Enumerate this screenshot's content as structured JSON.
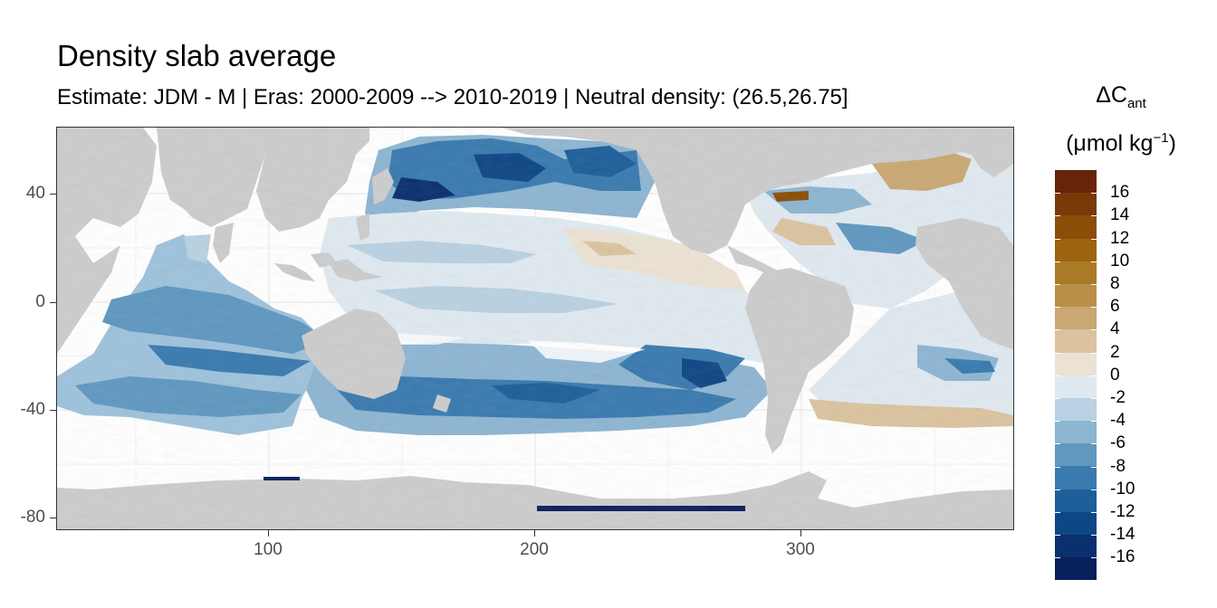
{
  "title": "Density slab average",
  "subtitle": "Estimate: JDM - M | Eras: 2000-2009 --> 2010-2019 | Neutral density: (26.5,26.75]",
  "legend": {
    "title_symbol": "ΔC",
    "title_subscript": "ant",
    "title_unit_prefix": "(μmol kg",
    "title_unit_superscript": "−1",
    "title_unit_suffix": ")",
    "labels": [
      "16",
      "14",
      "12",
      "10",
      "8",
      "6",
      "4",
      "2",
      "0",
      "-2",
      "-4",
      "-6",
      "-8",
      "-10",
      "-12",
      "-14",
      "-16"
    ],
    "colors": [
      "#67240b",
      "#7a3a07",
      "#8c4e07",
      "#9c640f",
      "#ab7a26",
      "#b98f49",
      "#c9a873",
      "#dbc39f",
      "#ebe2d3",
      "#dfe9ef",
      "#b9d1e2",
      "#8db5d2",
      "#6098c0",
      "#3a7aaf",
      "#1c5f99",
      "#0e4785",
      "#0a306f",
      "#08205c"
    ],
    "color_scale_range": [
      -18,
      18
    ]
  },
  "axes": {
    "x_ticks": [
      "100",
      "200",
      "300"
    ],
    "y_ticks": [
      "40",
      "0",
      "-40",
      "-80"
    ],
    "x_range": [
      20,
      380
    ],
    "y_range": [
      -84,
      65
    ]
  },
  "map": {
    "land_color": "#cccccc",
    "no_data_color": "#ffffff",
    "gridline_color": "#ebebeb"
  }
}
